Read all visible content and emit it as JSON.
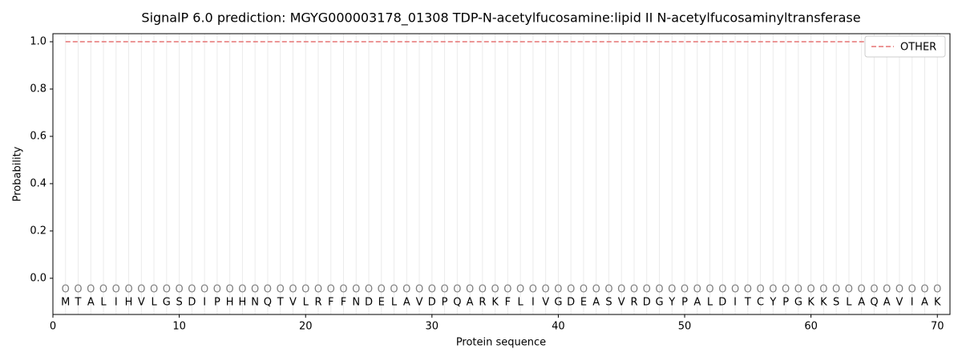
{
  "chart_data": {
    "type": "line",
    "title": "SignalP 6.0 prediction: MGYG000003178_01308 TDP-N-acetylfucosamine:lipid II N-acetylfucosaminyltransferase",
    "x_label": "Protein sequence",
    "y_label": "Probability",
    "x": [
      1,
      2,
      3,
      4,
      5,
      6,
      7,
      8,
      9,
      10,
      11,
      12,
      13,
      14,
      15,
      16,
      17,
      18,
      19,
      20,
      21,
      22,
      23,
      24,
      25,
      26,
      27,
      28,
      29,
      30,
      31,
      32,
      33,
      34,
      35,
      36,
      37,
      38,
      39,
      40,
      41,
      42,
      43,
      44,
      45,
      46,
      47,
      48,
      49,
      50,
      51,
      52,
      53,
      54,
      55,
      56,
      57,
      58,
      59,
      60,
      61,
      62,
      63,
      64,
      65,
      66,
      67,
      68,
      69,
      70
    ],
    "sequence": [
      "M",
      "T",
      "A",
      "L",
      "I",
      "H",
      "V",
      "L",
      "G",
      "S",
      "D",
      "I",
      "P",
      "H",
      "H",
      "N",
      "Q",
      "T",
      "V",
      "L",
      "R",
      "F",
      "F",
      "N",
      "D",
      "E",
      "L",
      "A",
      "V",
      "D",
      "P",
      "Q",
      "A",
      "R",
      "K",
      "F",
      "L",
      "I",
      "V",
      "G",
      "D",
      "E",
      "A",
      "S",
      "V",
      "R",
      "D",
      "G",
      "Y",
      "P",
      "A",
      "L",
      "D",
      "I",
      "T",
      "C",
      "Y",
      "P",
      "G",
      "K",
      "K",
      "S",
      "L",
      "A",
      "Q",
      "A",
      "V",
      "I",
      "A",
      "K"
    ],
    "predicted_labels": [
      "O",
      "O",
      "O",
      "O",
      "O",
      "O",
      "O",
      "O",
      "O",
      "O",
      "O",
      "O",
      "O",
      "O",
      "O",
      "O",
      "O",
      "O",
      "O",
      "O",
      "O",
      "O",
      "O",
      "O",
      "O",
      "O",
      "O",
      "O",
      "O",
      "O",
      "O",
      "O",
      "O",
      "O",
      "O",
      "O",
      "O",
      "O",
      "O",
      "O",
      "O",
      "O",
      "O",
      "O",
      "O",
      "O",
      "O",
      "O",
      "O",
      "O",
      "O",
      "O",
      "O",
      "O",
      "O",
      "O",
      "O",
      "O",
      "O",
      "O",
      "O",
      "O",
      "O",
      "O",
      "O",
      "O",
      "O",
      "O",
      "O",
      "O"
    ],
    "series": [
      {
        "name": "OTHER",
        "color": "#e57373",
        "dash": true,
        "values": [
          1,
          1,
          1,
          1,
          1,
          1,
          1,
          1,
          1,
          1,
          1,
          1,
          1,
          1,
          1,
          1,
          1,
          1,
          1,
          1,
          1,
          1,
          1,
          1,
          1,
          1,
          1,
          1,
          1,
          1,
          1,
          1,
          1,
          1,
          1,
          1,
          1,
          1,
          1,
          1,
          1,
          1,
          1,
          1,
          1,
          1,
          1,
          1,
          1,
          1,
          1,
          1,
          1,
          1,
          1,
          1,
          1,
          1,
          1,
          1,
          1,
          1,
          1,
          1,
          1,
          1,
          1,
          1,
          1,
          1
        ]
      }
    ],
    "xlim": [
      0,
      71
    ],
    "ylim": [
      -0.153,
      1.034
    ],
    "xticks": [
      0,
      10,
      20,
      30,
      40,
      50,
      60,
      70
    ],
    "yticks": [
      {
        "value": 0,
        "label": "0.0"
      },
      {
        "value": 0.2,
        "label": "0.2"
      },
      {
        "value": 0.4,
        "label": "0.4"
      },
      {
        "value": 0.6,
        "label": "0.6"
      },
      {
        "value": 0.8,
        "label": "0.8"
      },
      {
        "value": 1,
        "label": "1.0"
      }
    ],
    "legend": "upper right"
  }
}
